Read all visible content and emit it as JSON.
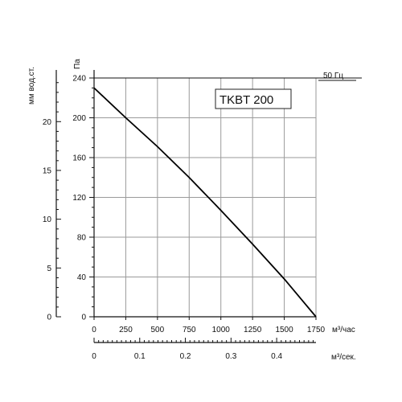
{
  "chart_data": {
    "type": "line",
    "title": "TKBT 200",
    "frequency_label": "50 Гц",
    "x_label": "м³/час",
    "x2_label": "м³/сек.",
    "y_label": "Па",
    "y2_label": "мм вод.ст.",
    "xlim": [
      0,
      1750
    ],
    "ylim": [
      0,
      240
    ],
    "x_ticks": [
      0,
      250,
      500,
      750,
      1000,
      1250,
      1500,
      1750
    ],
    "x_tick_labels": [
      "0",
      "250",
      "500",
      "750",
      "1000",
      "1250",
      "1500",
      "1750"
    ],
    "x2_ticks": [
      0,
      0.1,
      0.2,
      0.3,
      0.4
    ],
    "x2_tick_labels": [
      "0",
      "0.1",
      "0.2",
      "0.3",
      "0.4"
    ],
    "y_ticks": [
      0,
      40,
      80,
      120,
      160,
      200,
      240
    ],
    "y_tick_labels": [
      "0",
      "40",
      "80",
      "120",
      "160",
      "200",
      "240"
    ],
    "y2_ticks": [
      0,
      5,
      10,
      15,
      20
    ],
    "y2_tick_labels": [
      "0",
      "5",
      "10",
      "15",
      "20"
    ],
    "grid": true,
    "series": [
      {
        "x": [
          0,
          250,
          500,
          750,
          1000,
          1250,
          1500,
          1750
        ],
        "y": [
          230,
          200,
          171,
          140,
          107,
          73,
          38,
          0
        ]
      }
    ],
    "line_color": "#000000",
    "grid_color": "#9a9a9a"
  }
}
